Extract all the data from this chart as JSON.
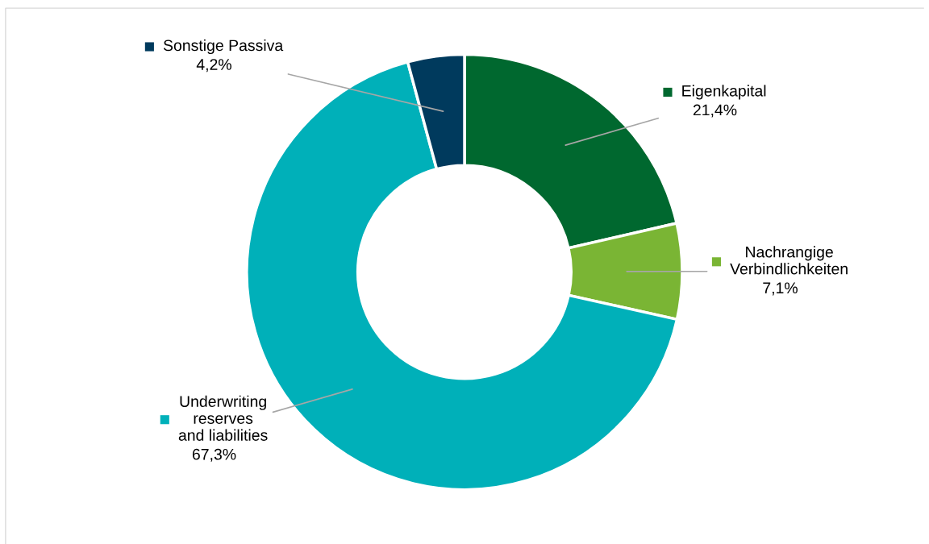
{
  "chart_data": {
    "type": "donut",
    "categories": [
      "Eigenkapital",
      "Nachrangige\nVerbindlichkeiten",
      "Underwriting\nreserves\nand liabilities",
      "Sonstige Passiva"
    ],
    "values": [
      21.4,
      7.1,
      67.3,
      4.2
    ],
    "colors": [
      "#00682f",
      "#7ab534",
      "#00b0b9",
      "#003a5d"
    ],
    "value_labels": [
      "21,4%",
      "7,1%",
      "67,3%",
      "4,2%"
    ],
    "legend": "top right"
  }
}
